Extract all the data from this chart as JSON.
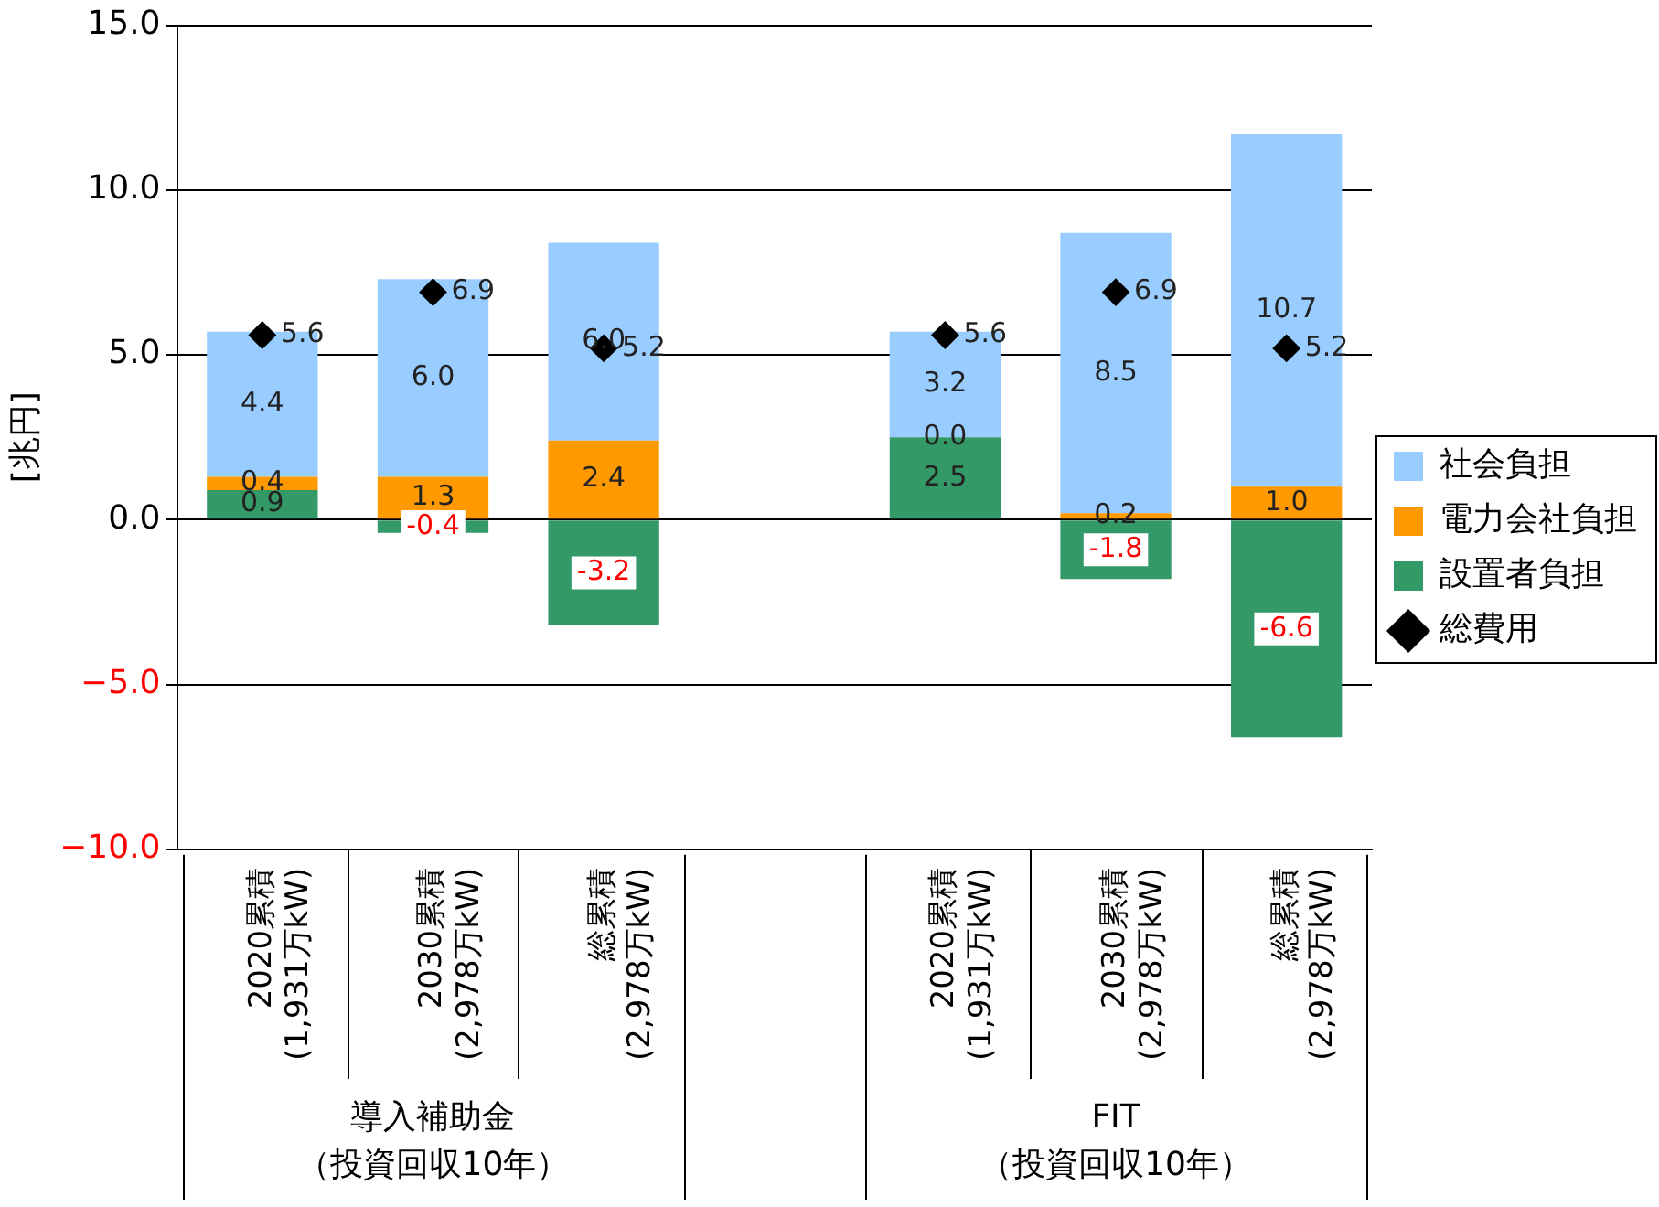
{
  "chart_data": {
    "type": "bar",
    "stacked": true,
    "ylabel": "[兆円]",
    "categories": [
      "2020累積\n(1,931万kW)",
      "2030累積\n(2,978万kW)",
      "総累積\n(2,978万kW)",
      null,
      "2020累積\n(1,931万kW)",
      "2030累積\n(2,978万kW)",
      "総累積\n(2,978万kW)"
    ],
    "series": [
      {
        "name": "設置者負担",
        "color": "#339966",
        "values": [
          0.9,
          -0.4,
          -3.2,
          null,
          2.5,
          -1.8,
          -6.6
        ],
        "value_labels": [
          "0.9",
          "-0.4",
          "-3.2",
          null,
          "2.5",
          "-1.8",
          "-6.6"
        ]
      },
      {
        "name": "電力会社負担",
        "color": "#ff9900",
        "values": [
          0.4,
          1.3,
          2.4,
          null,
          0.0,
          0.2,
          1.0
        ],
        "value_labels": [
          "0.4",
          "1.3",
          "2.4",
          null,
          "0.0",
          "0.2",
          "1.0"
        ]
      },
      {
        "name": "社会負担",
        "color": "#99ccff",
        "values": [
          4.4,
          6.0,
          6.0,
          null,
          3.2,
          8.5,
          10.7
        ],
        "value_labels": [
          "4.4",
          "6.0",
          "6.0",
          null,
          "3.2",
          "8.5",
          "10.7"
        ]
      },
      {
        "name": "総費用",
        "type": "scatter",
        "color": "#000000",
        "values": [
          5.6,
          6.9,
          5.2,
          null,
          5.6,
          6.9,
          5.2
        ],
        "value_labels": [
          "5.6",
          "6.9",
          "5.2",
          null,
          "5.6",
          "6.9",
          "5.2"
        ]
      }
    ],
    "ylim": [
      -10,
      15
    ],
    "yticks": [
      {
        "value": -10,
        "label": "−10.0"
      },
      {
        "value": -5,
        "label": "−5.0"
      },
      {
        "value": 0,
        "label": "0.0"
      },
      {
        "value": 5,
        "label": "5.0"
      },
      {
        "value": 10,
        "label": "10.0"
      },
      {
        "value": 15,
        "label": "15.0"
      }
    ],
    "annotations": [
      "導入補助金",
      "（投資回収10年）",
      "FIT",
      "（投資回収10年）"
    ],
    "grid": "y",
    "legend": "right",
    "marker": "diamond"
  }
}
